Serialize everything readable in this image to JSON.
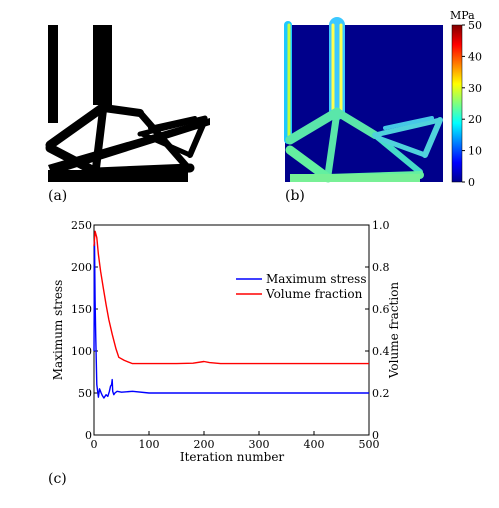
{
  "panels": {
    "a": {
      "label": "(a)"
    },
    "b": {
      "label": "(b)",
      "colorbar": {
        "unit": "MPa",
        "ticks": [
          0,
          10,
          20,
          30,
          40,
          50
        ]
      }
    },
    "c": {
      "label": "(c)"
    }
  },
  "colors": {
    "max_stress": "#0000ff",
    "volume_fraction": "#ff0000",
    "structure": "#000000",
    "stress_background": "#00008b"
  },
  "chart_data": {
    "type": "line",
    "xlabel": "Iteration number",
    "ylabel": "Maximum stress",
    "y2label": "Volume fraction",
    "xlim": [
      0,
      500
    ],
    "ylim": [
      0,
      250
    ],
    "y2lim": [
      0,
      1.0
    ],
    "xticks": [
      0,
      100,
      200,
      300,
      400,
      500
    ],
    "yticks": [
      0,
      50,
      100,
      150,
      200,
      250
    ],
    "y2ticks": [
      "0",
      "0.2",
      "0.4",
      "0.6",
      "0.8",
      "1.0"
    ],
    "legend_placement": "top-right",
    "series": [
      {
        "name": "Maximum stress",
        "axis": "left",
        "x": [
          0,
          1,
          2,
          3,
          5,
          8,
          10,
          13,
          15,
          18,
          22,
          25,
          28,
          30,
          32,
          33,
          34,
          36,
          38,
          42,
          50,
          70,
          100,
          200,
          300,
          400,
          500
        ],
        "y": [
          100,
          230,
          160,
          120,
          60,
          45,
          55,
          50,
          47,
          44,
          48,
          46,
          52,
          58,
          60,
          66,
          52,
          48,
          50,
          52,
          51,
          52,
          50,
          50,
          50,
          50,
          50
        ]
      },
      {
        "name": "Volume fraction",
        "axis": "right",
        "x": [
          0,
          2,
          5,
          8,
          12,
          17,
          22,
          27,
          33,
          40,
          45,
          55,
          70,
          100,
          150,
          180,
          200,
          210,
          230,
          300,
          400,
          500
        ],
        "y": [
          0.9,
          0.97,
          0.94,
          0.86,
          0.78,
          0.7,
          0.62,
          0.55,
          0.48,
          0.41,
          0.37,
          0.355,
          0.34,
          0.34,
          0.34,
          0.342,
          0.35,
          0.345,
          0.34,
          0.34,
          0.34,
          0.34
        ]
      }
    ]
  }
}
